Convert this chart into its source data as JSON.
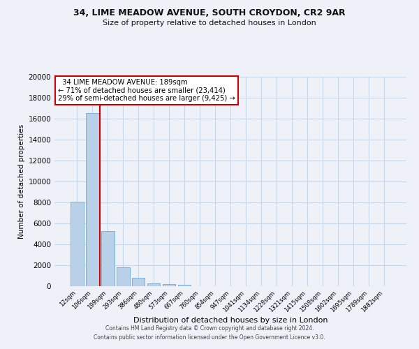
{
  "title1": "34, LIME MEADOW AVENUE, SOUTH CROYDON, CR2 9AR",
  "title2": "Size of property relative to detached houses in London",
  "xlabel": "Distribution of detached houses by size in London",
  "ylabel": "Number of detached properties",
  "bar_labels": [
    "12sqm",
    "106sqm",
    "199sqm",
    "293sqm",
    "386sqm",
    "480sqm",
    "573sqm",
    "667sqm",
    "760sqm",
    "854sqm",
    "947sqm",
    "1041sqm",
    "1134sqm",
    "1228sqm",
    "1321sqm",
    "1415sqm",
    "1508sqm",
    "1602sqm",
    "1695sqm",
    "1789sqm",
    "1882sqm"
  ],
  "bar_values": [
    8100,
    16500,
    5300,
    1800,
    800,
    300,
    200,
    150,
    0,
    0,
    0,
    0,
    0,
    0,
    0,
    0,
    0,
    0,
    0,
    0,
    0
  ],
  "bar_color": "#b8d0e8",
  "bar_edge_color": "#7aafe0",
  "ylim": [
    0,
    20000
  ],
  "yticks": [
    0,
    2000,
    4000,
    6000,
    8000,
    10000,
    12000,
    14000,
    16000,
    18000,
    20000
  ],
  "property_line_color": "#cc0000",
  "annotation_title": "34 LIME MEADOW AVENUE: 189sqm",
  "annotation_line1": "← 71% of detached houses are smaller (23,414)",
  "annotation_line2": "29% of semi-detached houses are larger (9,425) →",
  "annotation_box_color": "#ffffff",
  "annotation_box_edge": "#cc0000",
  "grid_color": "#c8d8e8",
  "background_color": "#eef2f8",
  "footer1": "Contains HM Land Registry data © Crown copyright and database right 2024.",
  "footer2": "Contains public sector information licensed under the Open Government Licence v3.0."
}
